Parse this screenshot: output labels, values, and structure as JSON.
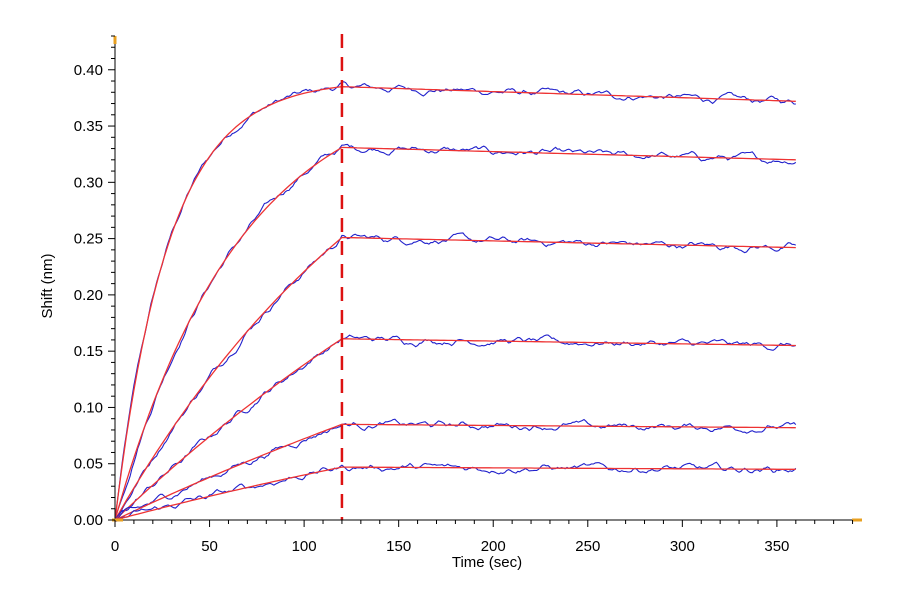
{
  "chart_data": {
    "type": "line",
    "xlabel": "Time (sec)",
    "ylabel": "Shift (nm)",
    "xlim": [
      0,
      395
    ],
    "ylim": [
      0,
      0.43
    ],
    "x_ticks": [
      0,
      50,
      100,
      150,
      200,
      250,
      300,
      350
    ],
    "x_tick_labels": [
      "0",
      "50",
      "100",
      "150",
      "200",
      "250",
      "300",
      "350"
    ],
    "y_ticks": [
      0,
      0.05,
      0.1,
      0.15,
      0.2,
      0.25,
      0.3,
      0.35,
      0.4
    ],
    "y_tick_labels": [
      "0.00",
      "0.05",
      "0.10",
      "0.15",
      "0.20",
      "0.25",
      "0.30",
      "0.35",
      "0.40"
    ],
    "grid": false,
    "legend": "none",
    "association_end_x": 120,
    "dissociation_end_x": 360,
    "marker_line_x": 120,
    "curves": [
      {
        "k": 0.035,
        "peak": 0.385,
        "end": 0.372
      },
      {
        "k": 0.015,
        "peak": 0.331,
        "end": 0.32
      },
      {
        "k": 0.006,
        "peak": 0.251,
        "end": 0.242
      },
      {
        "k": 0.003,
        "peak": 0.161,
        "end": 0.155
      },
      {
        "k": 0.002,
        "peak": 0.085,
        "end": 0.082
      },
      {
        "k": 0.0022,
        "peak": 0.047,
        "end": 0.045
      }
    ],
    "colors": {
      "data": "#2222cc",
      "fit": "#ee3333",
      "marker": "#dd1111",
      "axis": "#000000",
      "axis_marker": "#e8a020"
    }
  }
}
